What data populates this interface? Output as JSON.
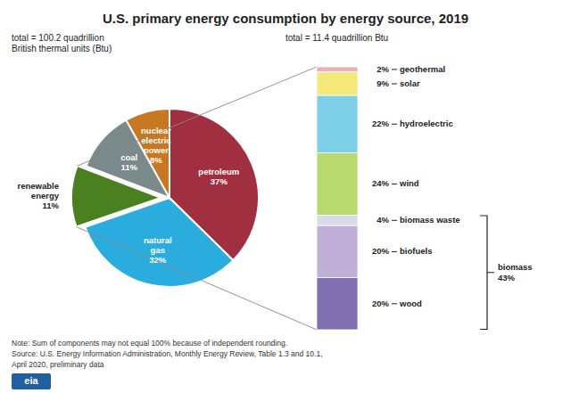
{
  "chart_data": [
    {
      "type": "pie",
      "title": "U.S. primary energy consumption by energy source, 2019",
      "subtitle": "total = 100.2 quadrillion\nBritish thermal units (Btu)",
      "categories": [
        "petroleum",
        "natural\ngas",
        "renewable\nenergy",
        "coal",
        "nuclear\nelectric\npower"
      ],
      "values": [
        37,
        32,
        11,
        11,
        8
      ],
      "value_labels": [
        "37%",
        "32%",
        "11%",
        "11%",
        "8%"
      ],
      "colors": [
        "#a03040",
        "#2aacde",
        "#4a8020",
        "#7a8a8a",
        "#c87820"
      ],
      "data_labels": true,
      "annotations": [
        "Note: Sum of components may not equal 100% because of independent rounding.",
        "Source: U.S. Energy Information Administration, Monthly Energy Review, Table 1.3 and 10.1,",
        "April 2020, preliminary data",
        "eia"
      ]
    },
    {
      "type": "bar",
      "stacked": true,
      "subtitle": "total = 11.4 quadrillion Btu",
      "categories": [
        "geothermal",
        "solar",
        "hydroelectric",
        "wind",
        "biomass waste",
        "biofuels",
        "wood"
      ],
      "values": [
        2,
        9,
        22,
        24,
        4,
        20,
        20
      ],
      "value_labels": [
        "2%",
        "9%",
        "22%",
        "24%",
        "4%",
        "20%",
        "20%"
      ],
      "colors": [
        "#e8b0b8",
        "#f5e87a",
        "#7dd0e8",
        "#b8d870",
        "#d8dce8",
        "#c0b0d8",
        "#8070b0"
      ],
      "ylim": [
        0,
        101
      ],
      "tick_labels": false,
      "data_labels": true,
      "annotations": [
        {
          "text": "biomass\n43%",
          "categories": [
            "biomass waste",
            "biofuels",
            "wood"
          ]
        }
      ]
    }
  ]
}
